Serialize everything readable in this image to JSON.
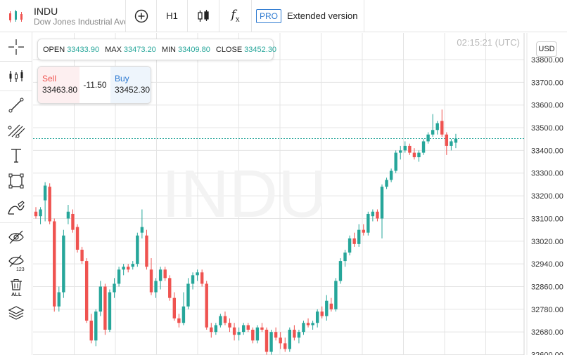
{
  "header": {
    "symbol": "INDU",
    "description": "Dow Jones Industrial Average",
    "timeframe": "H1",
    "pro_badge": "PRO",
    "extended_label": "Extended version",
    "logo_icon": "candlestick-logo-icon"
  },
  "left_tools": [
    {
      "name": "crosshair-tool",
      "icon": "crosshair-icon"
    },
    {
      "name": "indicators-tool",
      "icon": "indicators-icon"
    },
    {
      "name": "trend-line-tool",
      "icon": "line-icon"
    },
    {
      "name": "fibonacci-tool",
      "icon": "fib-icon"
    },
    {
      "name": "text-tool",
      "icon": "text-icon"
    },
    {
      "name": "shape-tool",
      "icon": "rectangle-icon"
    },
    {
      "name": "brush-tool",
      "icon": "brush-icon"
    },
    {
      "name": "hide-drawings-tool",
      "icon": "eye-off-icon"
    },
    {
      "name": "hide-indicators-tool",
      "icon": "eye-off-123-icon"
    },
    {
      "name": "delete-all-tool",
      "icon": "trash-all-icon",
      "label": "ALL"
    },
    {
      "name": "layers-tool",
      "icon": "layers-icon"
    }
  ],
  "ohlc": {
    "open_label": "OPEN",
    "open": "33433.90",
    "max_label": "MAX",
    "max": "33473.20",
    "min_label": "MIN",
    "min": "33409.80",
    "close_label": "CLOSE",
    "close": "33452.30"
  },
  "trade": {
    "sell_label": "Sell",
    "sell_price": "33463.80",
    "spread": "-11.50",
    "buy_label": "Buy",
    "buy_price": "33452.30"
  },
  "currency": "USD",
  "clock": "02:15:21 (UTC)",
  "watermark": "INDU",
  "colors": {
    "up": "#26a69a",
    "down": "#ef5350",
    "grid": "#e4e4e4",
    "price_line": "#26a69a"
  },
  "chart_data": {
    "type": "candlestick",
    "title": "",
    "ylim": [
      32600,
      33860
    ],
    "y_ticks": [
      "33800.00",
      "33700.00",
      "33600.00",
      "33500.00",
      "33400.00",
      "33300.00",
      "33200.00",
      "33100.00",
      "33020.00",
      "32940.00",
      "32860.00",
      "32780.00",
      "32680.00",
      "32600.00"
    ],
    "current_price": 33452.3,
    "candles": [
      {
        "o": 33130,
        "h": 33150,
        "l": 33100,
        "c": 33110
      },
      {
        "o": 33110,
        "h": 33150,
        "l": 33080,
        "c": 33140
      },
      {
        "o": 33180,
        "h": 33260,
        "l": 33090,
        "c": 33245
      },
      {
        "o": 33240,
        "h": 33255,
        "l": 33080,
        "c": 33090
      },
      {
        "o": 33090,
        "h": 33100,
        "l": 32770,
        "c": 32790
      },
      {
        "o": 32790,
        "h": 32860,
        "l": 32770,
        "c": 32840
      },
      {
        "o": 32840,
        "h": 33060,
        "l": 32820,
        "c": 33040
      },
      {
        "o": 33100,
        "h": 33160,
        "l": 33080,
        "c": 33130
      },
      {
        "o": 33120,
        "h": 33140,
        "l": 33050,
        "c": 33060
      },
      {
        "o": 33070,
        "h": 33080,
        "l": 32980,
        "c": 32990
      },
      {
        "o": 32990,
        "h": 33000,
        "l": 32940,
        "c": 32950
      },
      {
        "o": 32950,
        "h": 32960,
        "l": 32720,
        "c": 32730
      },
      {
        "o": 32730,
        "h": 32760,
        "l": 32640,
        "c": 32650
      },
      {
        "o": 32650,
        "h": 32780,
        "l": 32630,
        "c": 32770
      },
      {
        "o": 32770,
        "h": 32880,
        "l": 32750,
        "c": 32860
      },
      {
        "o": 32860,
        "h": 32870,
        "l": 32670,
        "c": 32690
      },
      {
        "o": 32690,
        "h": 32850,
        "l": 32680,
        "c": 32840
      },
      {
        "o": 32840,
        "h": 32890,
        "l": 32820,
        "c": 32870
      },
      {
        "o": 32870,
        "h": 32930,
        "l": 32860,
        "c": 32920
      },
      {
        "o": 32920,
        "h": 32940,
        "l": 32900,
        "c": 32930
      },
      {
        "o": 32930,
        "h": 32940,
        "l": 32910,
        "c": 32920
      },
      {
        "o": 32930,
        "h": 32950,
        "l": 32920,
        "c": 32940
      },
      {
        "o": 32940,
        "h": 33050,
        "l": 32930,
        "c": 33040
      },
      {
        "o": 33050,
        "h": 33140,
        "l": 33030,
        "c": 33070
      },
      {
        "o": 33040,
        "h": 33060,
        "l": 32920,
        "c": 32930
      },
      {
        "o": 32920,
        "h": 32960,
        "l": 32830,
        "c": 32840
      },
      {
        "o": 32840,
        "h": 32890,
        "l": 32820,
        "c": 32880
      },
      {
        "o": 32880,
        "h": 32930,
        "l": 32850,
        "c": 32920
      },
      {
        "o": 32920,
        "h": 32930,
        "l": 32880,
        "c": 32890
      },
      {
        "o": 32890,
        "h": 32900,
        "l": 32810,
        "c": 32820
      },
      {
        "o": 32820,
        "h": 32840,
        "l": 32730,
        "c": 32740
      },
      {
        "o": 32740,
        "h": 32760,
        "l": 32700,
        "c": 32720
      },
      {
        "o": 32720,
        "h": 32840,
        "l": 32710,
        "c": 32790
      },
      {
        "o": 32790,
        "h": 32890,
        "l": 32780,
        "c": 32870
      },
      {
        "o": 32870,
        "h": 32910,
        "l": 32850,
        "c": 32900
      },
      {
        "o": 32900,
        "h": 32920,
        "l": 32880,
        "c": 32910
      },
      {
        "o": 32910,
        "h": 32920,
        "l": 32860,
        "c": 32870
      },
      {
        "o": 32870,
        "h": 32880,
        "l": 32690,
        "c": 32700
      },
      {
        "o": 32700,
        "h": 32720,
        "l": 32660,
        "c": 32680
      },
      {
        "o": 32680,
        "h": 32720,
        "l": 32670,
        "c": 32710
      },
      {
        "o": 32710,
        "h": 32760,
        "l": 32700,
        "c": 32750
      },
      {
        "o": 32750,
        "h": 32770,
        "l": 32710,
        "c": 32720
      },
      {
        "o": 32720,
        "h": 32740,
        "l": 32680,
        "c": 32700
      },
      {
        "o": 32700,
        "h": 32720,
        "l": 32650,
        "c": 32670
      },
      {
        "o": 32670,
        "h": 32700,
        "l": 32650,
        "c": 32680
      },
      {
        "o": 32680,
        "h": 32720,
        "l": 32670,
        "c": 32710
      },
      {
        "o": 32710,
        "h": 32720,
        "l": 32680,
        "c": 32690
      },
      {
        "o": 32690,
        "h": 32700,
        "l": 32640,
        "c": 32650
      },
      {
        "o": 32650,
        "h": 32710,
        "l": 32640,
        "c": 32700
      },
      {
        "o": 32700,
        "h": 32720,
        "l": 32680,
        "c": 32690
      },
      {
        "o": 32690,
        "h": 32700,
        "l": 32600,
        "c": 32610
      },
      {
        "o": 32610,
        "h": 32690,
        "l": 32600,
        "c": 32680
      },
      {
        "o": 32680,
        "h": 32700,
        "l": 32650,
        "c": 32660
      },
      {
        "o": 32660,
        "h": 32680,
        "l": 32620,
        "c": 32640
      },
      {
        "o": 32640,
        "h": 32660,
        "l": 32610,
        "c": 32620
      },
      {
        "o": 32620,
        "h": 32700,
        "l": 32610,
        "c": 32690
      },
      {
        "o": 32690,
        "h": 32710,
        "l": 32650,
        "c": 32660
      },
      {
        "o": 32660,
        "h": 32690,
        "l": 32640,
        "c": 32680
      },
      {
        "o": 32680,
        "h": 32730,
        "l": 32670,
        "c": 32720
      },
      {
        "o": 32720,
        "h": 32740,
        "l": 32700,
        "c": 32710
      },
      {
        "o": 32710,
        "h": 32730,
        "l": 32690,
        "c": 32720
      },
      {
        "o": 32720,
        "h": 32780,
        "l": 32700,
        "c": 32770
      },
      {
        "o": 32770,
        "h": 32790,
        "l": 32740,
        "c": 32750
      },
      {
        "o": 32750,
        "h": 32830,
        "l": 32730,
        "c": 32810
      },
      {
        "o": 32800,
        "h": 32820,
        "l": 32770,
        "c": 32780
      },
      {
        "o": 32780,
        "h": 32890,
        "l": 32770,
        "c": 32880
      },
      {
        "o": 32880,
        "h": 32960,
        "l": 32870,
        "c": 32950
      },
      {
        "o": 32950,
        "h": 32990,
        "l": 32930,
        "c": 32980
      },
      {
        "o": 32980,
        "h": 33040,
        "l": 32970,
        "c": 33030
      },
      {
        "o": 33030,
        "h": 33050,
        "l": 33000,
        "c": 33010
      },
      {
        "o": 33010,
        "h": 33080,
        "l": 33000,
        "c": 33060
      },
      {
        "o": 33060,
        "h": 33080,
        "l": 33040,
        "c": 33050
      },
      {
        "o": 33050,
        "h": 33130,
        "l": 33040,
        "c": 33120
      },
      {
        "o": 33110,
        "h": 33140,
        "l": 33090,
        "c": 33130
      },
      {
        "o": 33130,
        "h": 33140,
        "l": 33090,
        "c": 33100
      },
      {
        "o": 33100,
        "h": 33250,
        "l": 33030,
        "c": 33240
      },
      {
        "o": 33240,
        "h": 33280,
        "l": 33230,
        "c": 33270
      },
      {
        "o": 33270,
        "h": 33320,
        "l": 33260,
        "c": 33310
      },
      {
        "o": 33310,
        "h": 33400,
        "l": 33300,
        "c": 33390
      },
      {
        "o": 33390,
        "h": 33420,
        "l": 33360,
        "c": 33400
      },
      {
        "o": 33400,
        "h": 33440,
        "l": 33390,
        "c": 33420
      },
      {
        "o": 33420,
        "h": 33430,
        "l": 33380,
        "c": 33390
      },
      {
        "o": 33390,
        "h": 33410,
        "l": 33360,
        "c": 33370
      },
      {
        "o": 33370,
        "h": 33400,
        "l": 33350,
        "c": 33390
      },
      {
        "o": 33390,
        "h": 33450,
        "l": 33380,
        "c": 33440
      },
      {
        "o": 33440,
        "h": 33480,
        "l": 33430,
        "c": 33470
      },
      {
        "o": 33470,
        "h": 33560,
        "l": 33460,
        "c": 33490
      },
      {
        "o": 33490,
        "h": 33530,
        "l": 33470,
        "c": 33520
      },
      {
        "o": 33530,
        "h": 33580,
        "l": 33460,
        "c": 33470
      },
      {
        "o": 33470,
        "h": 33480,
        "l": 33380,
        "c": 33420
      },
      {
        "o": 33420,
        "h": 33450,
        "l": 33400,
        "c": 33440
      },
      {
        "o": 33434,
        "h": 33473,
        "l": 33410,
        "c": 33452
      }
    ]
  }
}
